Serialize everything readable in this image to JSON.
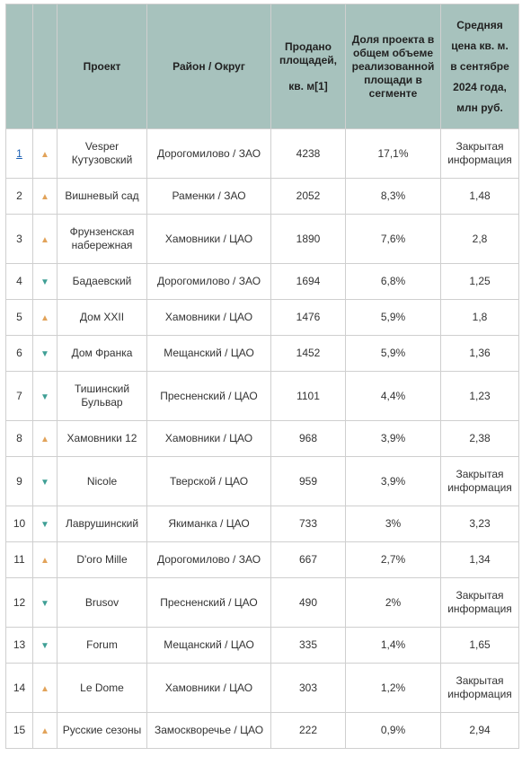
{
  "header": {
    "project": "Проект",
    "district": "Район / Округ",
    "sold_line1": "Продано",
    "sold_line2": "площадей,",
    "sold_unit": "кв. м",
    "sold_cite": "[1]",
    "share": "Доля проекта в общем объеме реализованной площади в сегменте",
    "price_line1": "Средняя",
    "price_line2": "цена кв. м.",
    "price_line3": "в сентябре",
    "price_line4": "2024 года,",
    "price_line5": "млн руб."
  },
  "colors": {
    "header_bg": "#a7c2bd",
    "arrow_up": "#e2a35a",
    "arrow_down": "#3f9f95",
    "link": "#1a5fb4"
  },
  "rows": [
    {
      "rank": "1",
      "trend": "up",
      "arrow": "▲",
      "project": "Vesper Кутузовский",
      "district": "Дорогомилово / ЗАО",
      "sold": "4238",
      "share": "17,1%",
      "price": "Закрытая информация"
    },
    {
      "rank": "2",
      "trend": "up",
      "arrow": "▲",
      "project": "Вишневый сад",
      "district": "Раменки / ЗАО",
      "sold": "2052",
      "share": "8,3%",
      "price": "1,48"
    },
    {
      "rank": "3",
      "trend": "up",
      "arrow": "▲",
      "project": "Фрунзенская набережная",
      "district": "Хамовники / ЦАО",
      "sold": "1890",
      "share": "7,6%",
      "price": "2,8"
    },
    {
      "rank": "4",
      "trend": "down",
      "arrow": "▼",
      "project": "Бадаевский",
      "district": "Дорогомилово / ЗАО",
      "sold": "1694",
      "share": "6,8%",
      "price": "1,25"
    },
    {
      "rank": "5",
      "trend": "up",
      "arrow": "▲",
      "project": "Дом XXII",
      "district": "Хамовники / ЦАО",
      "sold": "1476",
      "share": "5,9%",
      "price": "1,8"
    },
    {
      "rank": "6",
      "trend": "down",
      "arrow": "▼",
      "project": "Дом Франка",
      "district": "Мещанский / ЦАО",
      "sold": "1452",
      "share": "5,9%",
      "price": "1,36"
    },
    {
      "rank": "7",
      "trend": "down",
      "arrow": "▼",
      "project": "Тишинский Бульвар",
      "district": "Пресненский / ЦАО",
      "sold": "1101",
      "share": "4,4%",
      "price": "1,23"
    },
    {
      "rank": "8",
      "trend": "up",
      "arrow": "▲",
      "project": "Хамовники 12",
      "district": "Хамовники / ЦАО",
      "sold": "968",
      "share": "3,9%",
      "price": "2,38"
    },
    {
      "rank": "9",
      "trend": "down",
      "arrow": "▼",
      "project": "Nicole",
      "district": "Тверской / ЦАО",
      "sold": "959",
      "share": "3,9%",
      "price": "Закрытая информация"
    },
    {
      "rank": "10",
      "trend": "down",
      "arrow": "▼",
      "project": "Лаврушинский",
      "district": "Якиманка / ЦАО",
      "sold": "733",
      "share": "3%",
      "price": "3,23"
    },
    {
      "rank": "11",
      "trend": "up",
      "arrow": "▲",
      "project": "D'oro Mille",
      "district": "Дорогомилово / ЗАО",
      "sold": "667",
      "share": "2,7%",
      "price": "1,34"
    },
    {
      "rank": "12",
      "trend": "down",
      "arrow": "▼",
      "project": "Brusov",
      "district": "Пресненский / ЦАО",
      "sold": "490",
      "share": "2%",
      "price": "Закрытая информация"
    },
    {
      "rank": "13",
      "trend": "down",
      "arrow": "▼",
      "project": "Forum",
      "district": "Мещанский / ЦАО",
      "sold": "335",
      "share": "1,4%",
      "price": "1,65"
    },
    {
      "rank": "14",
      "trend": "up",
      "arrow": "▲",
      "project": "Le Dome",
      "district": "Хамовники / ЦАО",
      "sold": "303",
      "share": "1,2%",
      "price": "Закрытая информация"
    },
    {
      "rank": "15",
      "trend": "up",
      "arrow": "▲",
      "project": "Русские сезоны",
      "district": "Замоскворечье / ЦАО",
      "sold": "222",
      "share": "0,9%",
      "price": "2,94"
    }
  ]
}
